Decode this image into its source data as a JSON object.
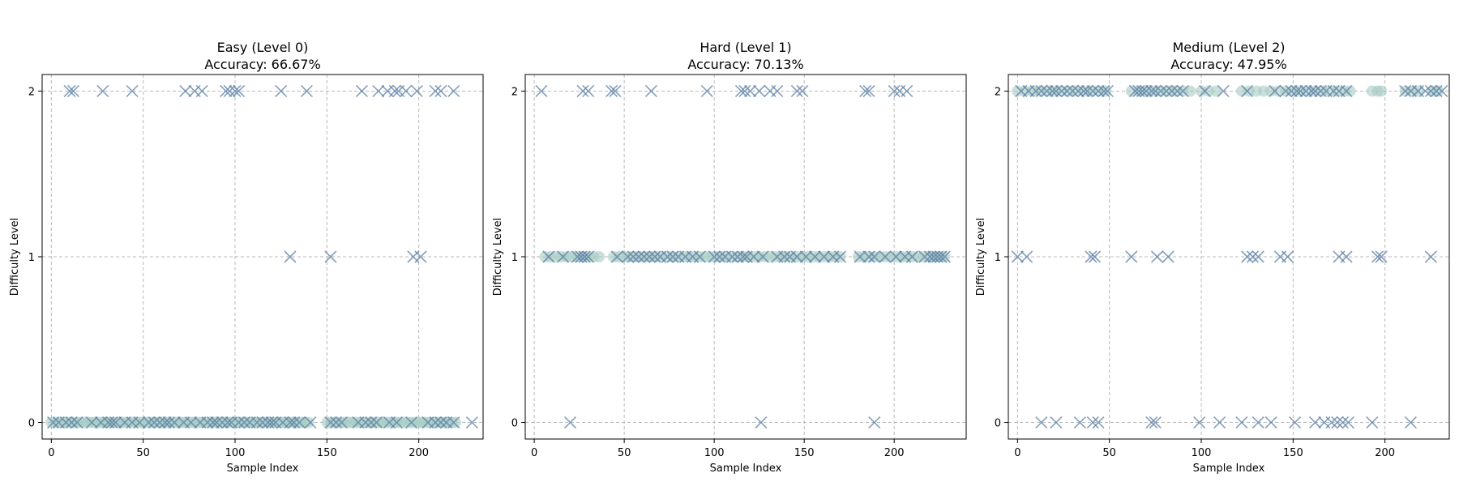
{
  "chart_data": [
    {
      "type": "scatter",
      "title_line1": "Easy (Level 0)",
      "title_line2": "Accuracy: 66.67%",
      "xlabel": "Sample Index",
      "ylabel": "Difficulty Level",
      "xlim": [
        -5,
        235
      ],
      "ylim": [
        -0.1,
        2.1
      ],
      "xticks": [
        0,
        50,
        100,
        150,
        200
      ],
      "yticks": [
        0,
        1,
        2
      ],
      "grid": true,
      "correct": {
        "y": 0,
        "x": [
          0,
          2,
          4,
          6,
          8,
          10,
          12,
          14,
          16,
          18,
          20,
          22,
          24,
          26,
          28,
          30,
          32,
          34,
          36,
          38,
          40,
          42,
          44,
          46,
          48,
          50,
          52,
          54,
          56,
          58,
          60,
          62,
          64,
          66,
          68,
          70,
          72,
          74,
          76,
          78,
          80,
          82,
          84,
          86,
          88,
          90,
          92,
          94,
          96,
          98,
          100,
          102,
          104,
          106,
          108,
          110,
          112,
          114,
          116,
          118,
          120,
          122,
          124,
          126,
          128,
          130,
          132,
          134,
          136,
          138,
          140,
          150,
          152,
          154,
          156,
          158,
          160,
          162,
          164,
          166,
          168,
          170,
          172,
          174,
          176,
          178,
          180,
          182,
          184,
          186,
          188,
          190,
          192,
          194,
          196,
          198,
          200,
          202,
          204,
          206,
          208,
          210,
          212,
          214,
          216,
          218,
          220
        ]
      },
      "incorrect": [
        {
          "y": 2,
          "x": [
            10,
            12,
            28,
            44,
            73,
            78,
            82,
            95,
            97,
            100,
            102,
            125,
            139,
            169,
            178,
            183,
            187,
            189,
            193,
            199,
            209,
            212,
            219
          ]
        },
        {
          "y": 1,
          "x": [
            130,
            152,
            197,
            201
          ]
        },
        {
          "y": 0,
          "x": [
            1,
            4,
            8,
            11,
            14,
            22,
            27,
            31,
            33,
            35,
            40,
            44,
            48,
            53,
            56,
            59,
            62,
            64,
            67,
            72,
            76,
            81,
            85,
            88,
            90,
            93,
            96,
            98,
            102,
            105,
            108,
            112,
            115,
            118,
            120,
            122,
            126,
            130,
            132,
            135,
            141,
            152,
            155,
            158,
            167,
            171,
            174,
            177,
            184,
            188,
            196,
            205,
            209,
            212,
            215,
            219,
            229
          ]
        }
      ]
    },
    {
      "type": "scatter",
      "title_line1": "Hard (Level 1)",
      "title_line2": "Accuracy: 70.13%",
      "xlabel": "Sample Index",
      "ylabel": "Difficulty Level",
      "xlim": [
        -5,
        240
      ],
      "ylim": [
        -0.1,
        2.1
      ],
      "xticks": [
        0,
        50,
        100,
        150,
        200
      ],
      "yticks": [
        0,
        1,
        2
      ],
      "grid": true,
      "correct": {
        "y": 1,
        "x": [
          6,
          9,
          12,
          15,
          18,
          21,
          24,
          27,
          30,
          33,
          36,
          44,
          47,
          50,
          53,
          56,
          59,
          62,
          65,
          68,
          71,
          74,
          77,
          80,
          83,
          86,
          89,
          92,
          95,
          98,
          101,
          104,
          107,
          110,
          113,
          116,
          119,
          122,
          125,
          128,
          131,
          134,
          137,
          140,
          143,
          146,
          149,
          152,
          155,
          158,
          161,
          164,
          167,
          170,
          180,
          183,
          186,
          189,
          192,
          195,
          198,
          201,
          204,
          207,
          210,
          213,
          216,
          219,
          222,
          225,
          228
        ]
      },
      "incorrect": [
        {
          "y": 2,
          "x": [
            4,
            27,
            30,
            43,
            45,
            65,
            96,
            115,
            117,
            120,
            125,
            131,
            135,
            146,
            149,
            184,
            186,
            200,
            203,
            207
          ]
        },
        {
          "y": 1,
          "x": [
            8,
            16,
            24,
            26,
            28,
            30,
            46,
            52,
            55,
            58,
            61,
            64,
            67,
            70,
            74,
            77,
            80,
            84,
            88,
            92,
            100,
            103,
            106,
            110,
            113,
            116,
            118,
            122,
            127,
            135,
            139,
            142,
            146,
            151,
            156,
            161,
            166,
            170,
            181,
            186,
            189,
            195,
            201,
            206,
            210,
            217,
            220,
            222,
            224,
            226,
            228
          ]
        },
        {
          "y": 0,
          "x": [
            20,
            126,
            189
          ]
        }
      ]
    },
    {
      "type": "scatter",
      "title_line1": "Medium (Level 2)",
      "title_line2": "Accuracy: 47.95%",
      "xlabel": "Sample Index",
      "ylabel": "Difficulty Level",
      "xlim": [
        -5,
        235
      ],
      "ylim": [
        -0.1,
        2.1
      ],
      "xticks": [
        0,
        50,
        100,
        150,
        200
      ],
      "yticks": [
        0,
        1,
        2
      ],
      "grid": true,
      "correct": {
        "y": 2,
        "x": [
          0,
          4,
          8,
          12,
          16,
          20,
          24,
          28,
          32,
          36,
          40,
          44,
          48,
          62,
          66,
          70,
          74,
          78,
          82,
          86,
          90,
          94,
          100,
          104,
          108,
          122,
          126,
          130,
          134,
          138,
          142,
          146,
          150,
          154,
          158,
          162,
          166,
          170,
          174,
          178,
          181,
          193,
          196,
          198,
          211,
          215,
          218,
          226,
          229
        ]
      },
      "incorrect": [
        {
          "y": 2,
          "x": [
            2,
            6,
            10,
            13,
            16,
            19,
            21,
            24,
            27,
            30,
            33,
            36,
            38,
            41,
            44,
            47,
            49,
            64,
            66,
            68,
            70,
            73,
            75,
            78,
            81,
            84,
            87,
            90,
            102,
            112,
            125,
            140,
            146,
            149,
            152,
            154,
            157,
            160,
            162,
            165,
            168,
            172,
            175,
            179,
            211,
            214,
            218,
            222,
            225,
            228,
            231
          ]
        },
        {
          "y": 1,
          "x": [
            0,
            5,
            40,
            42,
            62,
            76,
            82,
            125,
            128,
            131,
            143,
            147,
            175,
            179,
            196,
            198,
            225
          ]
        },
        {
          "y": 0,
          "x": [
            13,
            21,
            34,
            41,
            44,
            73,
            75,
            99,
            110,
            122,
            131,
            138,
            151,
            162,
            167,
            171,
            174,
            177,
            180,
            193,
            214
          ]
        }
      ]
    }
  ]
}
